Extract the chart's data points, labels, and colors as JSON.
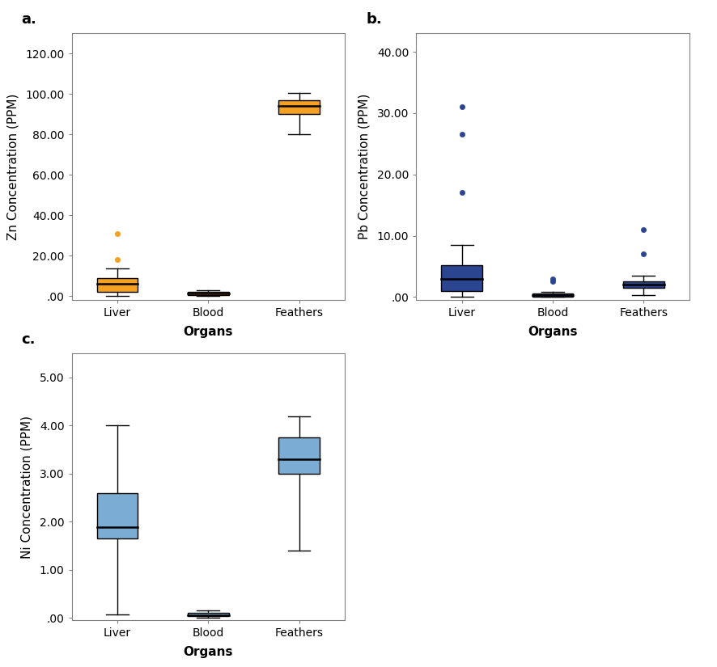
{
  "panel_a": {
    "ylabel": "Zn Concentration (PPM)",
    "xlabel": "Organs",
    "label": "a.",
    "ylim": [
      -2,
      130
    ],
    "yticks": [
      0.0,
      20.0,
      40.0,
      60.0,
      80.0,
      100.0,
      120.0
    ],
    "ytick_labels": [
      ".00",
      "20.00",
      "40.00",
      "60.00",
      "80.00",
      "100.00",
      "120.00"
    ],
    "categories": [
      "Liver",
      "Blood",
      "Feathers"
    ],
    "box_color": "#F5A020",
    "boxes": [
      {
        "q1": 2.0,
        "median": 6.0,
        "q3": 9.0,
        "whislo": 0.0,
        "whishi": 13.5,
        "outliers": [
          18.0,
          31.0
        ]
      },
      {
        "q1": 0.3,
        "median": 1.2,
        "q3": 2.0,
        "whislo": 0.0,
        "whishi": 3.0,
        "outliers": []
      },
      {
        "q1": 90.0,
        "median": 94.0,
        "q3": 97.0,
        "whislo": 80.0,
        "whishi": 100.5,
        "outliers": []
      }
    ]
  },
  "panel_b": {
    "ylabel": "Pb Concentration (PPM)",
    "xlabel": "Organs",
    "label": "b.",
    "ylim": [
      -0.5,
      43
    ],
    "yticks": [
      0.0,
      10.0,
      20.0,
      30.0,
      40.0
    ],
    "ytick_labels": [
      ".00",
      "10.00",
      "20.00",
      "30.00",
      "40.00"
    ],
    "categories": [
      "Liver",
      "Blood",
      "Feathers"
    ],
    "box_color": "#2B4590",
    "boxes": [
      {
        "q1": 1.0,
        "median": 3.0,
        "q3": 5.2,
        "whislo": 0.0,
        "whishi": 8.5,
        "outliers": [
          17.0,
          26.5,
          31.0
        ]
      },
      {
        "q1": 0.05,
        "median": 0.3,
        "q3": 0.6,
        "whislo": 0.0,
        "whishi": 0.9,
        "outliers": [
          2.5,
          3.0
        ]
      },
      {
        "q1": 1.5,
        "median": 2.0,
        "q3": 2.6,
        "whislo": 0.3,
        "whishi": 3.5,
        "outliers": [
          7.0,
          11.0
        ]
      }
    ]
  },
  "panel_c": {
    "ylabel": "Ni Concentration (PPM)",
    "xlabel": "Organs",
    "label": "c.",
    "ylim": [
      -0.05,
      5.5
    ],
    "yticks": [
      0.0,
      1.0,
      2.0,
      3.0,
      4.0,
      5.0
    ],
    "ytick_labels": [
      ".00",
      "1.00",
      "2.00",
      "3.00",
      "4.00",
      "5.00"
    ],
    "categories": [
      "Liver",
      "Blood",
      "Feathers"
    ],
    "box_color": "#7BADD4",
    "boxes": [
      {
        "q1": 1.65,
        "median": 1.88,
        "q3": 2.6,
        "whislo": 0.08,
        "whishi": 4.0,
        "outliers": []
      },
      {
        "q1": 0.03,
        "median": 0.06,
        "q3": 0.1,
        "whislo": 0.0,
        "whishi": 0.15,
        "outliers": []
      },
      {
        "q1": 3.0,
        "median": 3.3,
        "q3": 3.75,
        "whislo": 1.4,
        "whishi": 4.2,
        "outliers": []
      }
    ]
  },
  "bg_color": "#ffffff",
  "spine_color": "#808080",
  "fontsize_ticklabel": 10,
  "fontsize_axislabel": 11,
  "fontsize_panel": 13,
  "box_width": 0.45
}
